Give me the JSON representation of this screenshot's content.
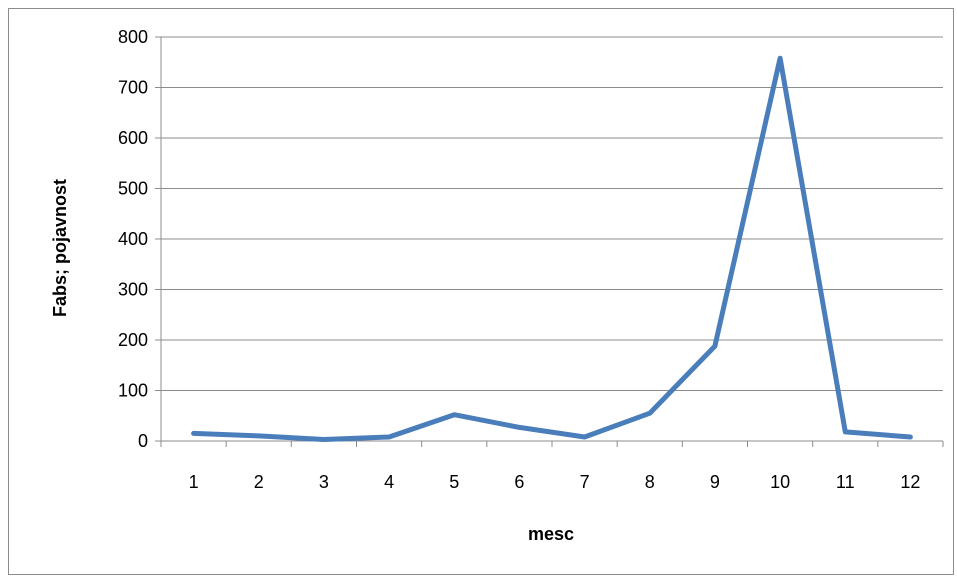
{
  "chart_data": {
    "type": "line",
    "title": "",
    "xlabel": "mesc",
    "ylabel": "Fabs; pojavnost",
    "categories": [
      "1",
      "2",
      "3",
      "4",
      "5",
      "6",
      "7",
      "8",
      "9",
      "10",
      "11",
      "12"
    ],
    "series": [
      {
        "values": [
          15,
          10,
          3,
          8,
          52,
          27,
          8,
          55,
          188,
          758,
          18,
          8
        ]
      }
    ],
    "ylim": [
      0,
      800
    ],
    "yticks": [
      0,
      100,
      200,
      300,
      400,
      500,
      600,
      700,
      800
    ],
    "grid": true,
    "legend": "none",
    "line_color": "#4a7ebb",
    "grid_color": "#8c8c8c"
  }
}
